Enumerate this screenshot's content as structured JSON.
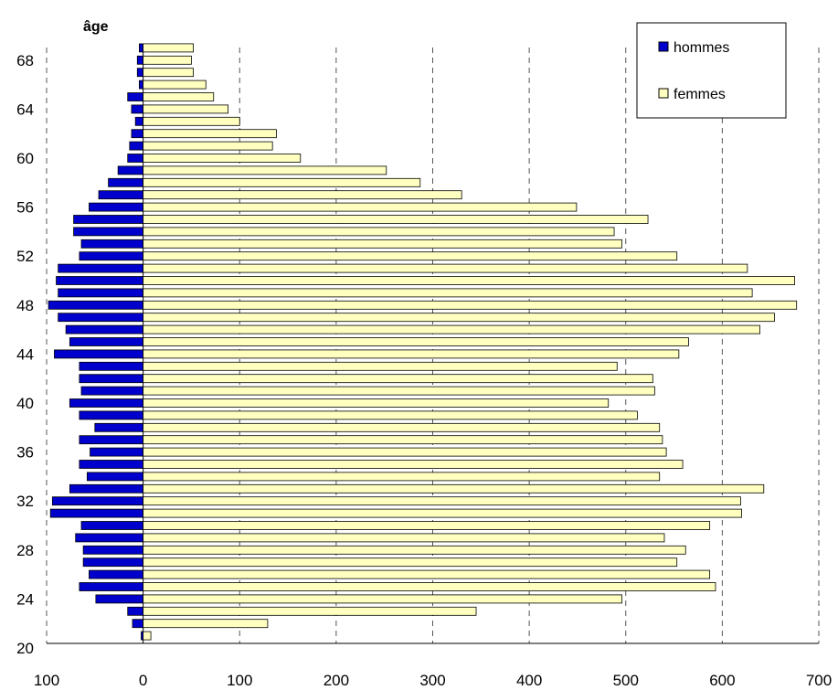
{
  "chart_data": {
    "type": "bar",
    "orientation": "horizontal",
    "title": "",
    "ylabel": "âge",
    "xlabel": "",
    "categories": [
      21,
      22,
      23,
      24,
      25,
      26,
      27,
      28,
      29,
      30,
      31,
      32,
      33,
      34,
      35,
      36,
      37,
      38,
      39,
      40,
      41,
      42,
      43,
      44,
      45,
      46,
      47,
      48,
      49,
      50,
      51,
      52,
      53,
      54,
      55,
      56,
      57,
      58,
      59,
      60,
      61,
      62,
      63,
      64,
      65,
      66,
      67,
      68,
      69
    ],
    "y_ticks": [
      "20",
      "24",
      "28",
      "32",
      "36",
      "40",
      "44",
      "48",
      "52",
      "56",
      "60",
      "64",
      "68"
    ],
    "x_ticks": [
      "100",
      "0",
      "100",
      "200",
      "300",
      "400",
      "500",
      "600",
      "700"
    ],
    "xlim": [
      -100,
      700
    ],
    "grid": "vertical-dashed",
    "legend_position": "top-right",
    "series": [
      {
        "name": "hommes",
        "color": "#0000cc",
        "values": [
          2,
          11,
          16,
          49,
          66,
          56,
          62,
          62,
          70,
          64,
          96,
          94,
          76,
          58,
          66,
          55,
          66,
          50,
          66,
          76,
          64,
          66,
          66,
          92,
          76,
          80,
          88,
          98,
          88,
          90,
          88,
          66,
          64,
          72,
          72,
          56,
          46,
          36,
          26,
          16,
          14,
          12,
          8,
          12,
          16,
          4,
          6,
          6,
          4
        ]
      },
      {
        "name": "femmes",
        "color": "#ffffc0",
        "values": [
          8,
          129,
          345,
          496,
          593,
          587,
          553,
          562,
          540,
          587,
          620,
          619,
          643,
          535,
          559,
          542,
          538,
          535,
          512,
          482,
          530,
          528,
          491,
          555,
          565,
          639,
          654,
          677,
          631,
          675,
          626,
          553,
          496,
          488,
          523,
          449,
          330,
          287,
          252,
          163,
          134,
          138,
          100,
          88,
          73,
          65,
          52,
          50,
          52
        ]
      }
    ]
  }
}
